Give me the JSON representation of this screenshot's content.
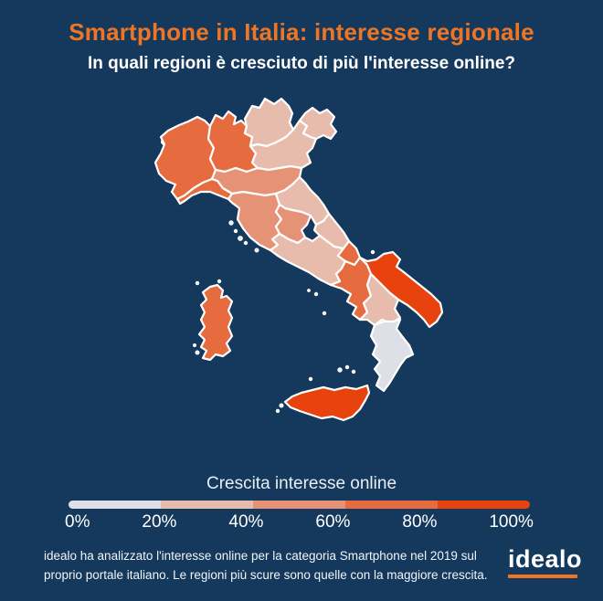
{
  "header": {
    "title": "Smartphone in Italia: interesse regionale",
    "subtitle": "In quali regioni è cresciuto di più l'interesse online?"
  },
  "legend": {
    "title": "Crescita interesse online",
    "ticks": [
      "0%",
      "20%",
      "40%",
      "60%",
      "80%",
      "100%"
    ]
  },
  "footer": {
    "note": "idealo ha analizzato l'interesse online per la categoria Smartphone nel 2019 sul proprio portale italiano. Le regioni più scure sono quelle con la maggiore crescita.",
    "logo_text": "idealo"
  },
  "colors": {
    "background": "#14395d",
    "title_accent": "#ee7524",
    "map_stroke": "#ffffff",
    "island_fill": "#e3e7ec",
    "logo_underline": "#ee7524"
  },
  "chart_data": {
    "type": "heatmap",
    "subtype": "choropleth-map-italy",
    "title": "Crescita interesse online",
    "unit": "%",
    "scale": {
      "min": 0,
      "max": 100,
      "ticks": [
        "0%",
        "20%",
        "40%",
        "60%",
        "80%",
        "100%"
      ],
      "bucket_ranges": [
        "0-20%",
        "20-40%",
        "40-60%",
        "60-80%",
        "80-100%"
      ],
      "bucket_colors": [
        "#dde1e7",
        "#e8bcad",
        "#e69277",
        "#e66c3f",
        "#e8430e"
      ],
      "legend_position": "bottom"
    },
    "regions": [
      {
        "id": "valle-daosta",
        "name": "Valle d'Aosta",
        "value_range": "0-20%",
        "bucket": 0
      },
      {
        "id": "piemonte",
        "name": "Piemonte",
        "value_range": "60-80%",
        "bucket": 3
      },
      {
        "id": "lombardia",
        "name": "Lombardia",
        "value_range": "60-80%",
        "bucket": 3
      },
      {
        "id": "trentino-alto-adige",
        "name": "Trentino-Alto Adige",
        "value_range": "20-40%",
        "bucket": 1
      },
      {
        "id": "veneto",
        "name": "Veneto",
        "value_range": "20-40%",
        "bucket": 1
      },
      {
        "id": "friuli-venezia-giulia",
        "name": "Friuli-Venezia Giulia",
        "value_range": "20-40%",
        "bucket": 1
      },
      {
        "id": "liguria",
        "name": "Liguria",
        "value_range": "60-80%",
        "bucket": 3
      },
      {
        "id": "emilia-romagna",
        "name": "Emilia-Romagna",
        "value_range": "40-60%",
        "bucket": 2
      },
      {
        "id": "toscana",
        "name": "Toscana",
        "value_range": "40-60%",
        "bucket": 2
      },
      {
        "id": "marche",
        "name": "Marche",
        "value_range": "20-40%",
        "bucket": 1
      },
      {
        "id": "umbria",
        "name": "Umbria",
        "value_range": "40-60%",
        "bucket": 2
      },
      {
        "id": "lazio",
        "name": "Lazio",
        "value_range": "20-40%",
        "bucket": 1
      },
      {
        "id": "abruzzo",
        "name": "Abruzzo",
        "value_range": "20-40%",
        "bucket": 1
      },
      {
        "id": "molise",
        "name": "Molise",
        "value_range": "60-80%",
        "bucket": 3
      },
      {
        "id": "campania",
        "name": "Campania",
        "value_range": "60-80%",
        "bucket": 3
      },
      {
        "id": "puglia",
        "name": "Puglia",
        "value_range": "80-100%",
        "bucket": 4
      },
      {
        "id": "basilicata",
        "name": "Basilicata",
        "value_range": "20-40%",
        "bucket": 1
      },
      {
        "id": "calabria",
        "name": "Calabria",
        "value_range": "0-20%",
        "bucket": 0
      },
      {
        "id": "sicilia",
        "name": "Sicilia",
        "value_range": "80-100%",
        "bucket": 4
      },
      {
        "id": "sardegna",
        "name": "Sardegna",
        "value_range": "60-80%",
        "bucket": 3
      }
    ]
  }
}
